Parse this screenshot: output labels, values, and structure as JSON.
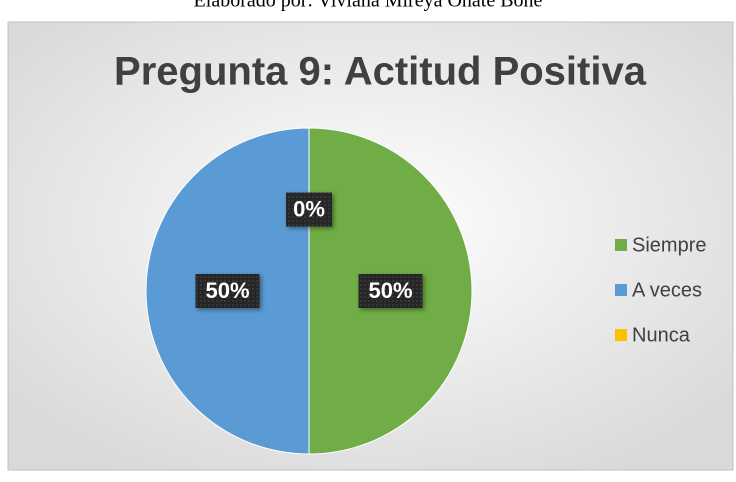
{
  "caption": "Elaborado por: Viviana Mireya Oñate Boñe",
  "chart_data": {
    "type": "pie",
    "title": "Pregunta 9: Actitud Positiva",
    "categories": [
      "Siempre",
      "A veces",
      "Nunca"
    ],
    "values": [
      50,
      50,
      0
    ],
    "value_labels": [
      "50%",
      "50%",
      "0%"
    ],
    "colors": [
      "#70ad47",
      "#5b9bd5",
      "#ffc000"
    ],
    "legend": "right"
  }
}
